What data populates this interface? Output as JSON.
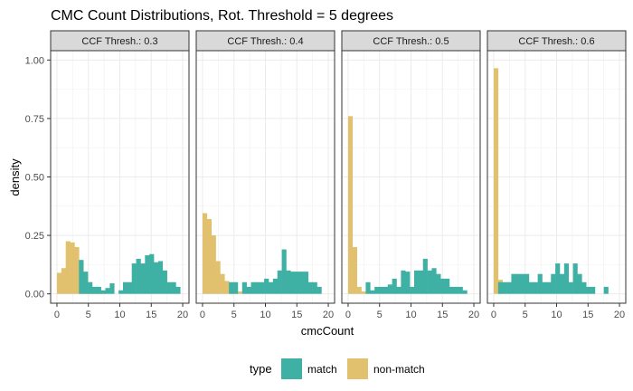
{
  "chart_data": {
    "type": "bar",
    "title": "CMC Count Distributions, Rot. Threshold = 5 degrees",
    "xlabel": "cmcCount",
    "ylabel": "density",
    "xlim": [
      -1,
      21
    ],
    "ylim": [
      -0.04,
      1.04
    ],
    "x_ticks": [
      0,
      5,
      10,
      15,
      20
    ],
    "y_ticks": [
      0.0,
      0.25,
      0.5,
      0.75,
      1.0
    ],
    "y_tick_labels": [
      "0.00",
      "0.25",
      "0.50",
      "0.75",
      "1.00"
    ],
    "bin_width": 0.7,
    "grid": true,
    "legend": {
      "title": "type",
      "position": "bottom",
      "entries": [
        {
          "name": "match",
          "color": "#3EB1A4"
        },
        {
          "name": "non-match",
          "color": "#E1C16E"
        }
      ]
    },
    "panels": [
      {
        "label": "CCF Thresh.: 0.3",
        "series": [
          {
            "name": "non-match",
            "color": "#E1C16E",
            "x": [
              0,
              0.7,
              1.4,
              2.1,
              2.8,
              3.5,
              4.2,
              4.9,
              5.6,
              6.3,
              7.0
            ],
            "values": [
              0.09,
              0.11,
              0.225,
              0.22,
              0.2,
              0.135,
              0.08,
              0.05,
              0.02,
              0.01,
              0.005
            ]
          },
          {
            "name": "match",
            "color": "#3EB1A4",
            "x": [
              3.5,
              4.2,
              4.9,
              5.6,
              6.3,
              7.0,
              7.7,
              8.4,
              9.1,
              9.8,
              10.5,
              11.2,
              11.9,
              12.6,
              13.3,
              14.0,
              14.7,
              15.4,
              16.1,
              16.8,
              17.5,
              18.2,
              18.9
            ],
            "values": [
              0.145,
              0.095,
              0.05,
              0.03,
              0.03,
              0.015,
              0.025,
              0.045,
              0.0,
              0.015,
              0.05,
              0.05,
              0.13,
              0.15,
              0.13,
              0.165,
              0.17,
              0.135,
              0.14,
              0.1,
              0.05,
              0.05,
              0.03
            ]
          }
        ]
      },
      {
        "label": "CCF Thresh.: 0.4",
        "series": [
          {
            "name": "non-match",
            "color": "#E1C16E",
            "x": [
              0,
              0.7,
              1.4,
              2.1,
              2.8,
              3.5,
              4.2,
              4.9,
              5.6
            ],
            "values": [
              0.345,
              0.32,
              0.25,
              0.14,
              0.085,
              0.055,
              0.03,
              0.02,
              0.01
            ]
          },
          {
            "name": "match",
            "color": "#3EB1A4",
            "x": [
              4.2,
              4.9,
              5.6,
              6.3,
              7.0,
              7.7,
              8.4,
              9.1,
              9.8,
              10.5,
              11.2,
              11.9,
              12.6,
              13.3,
              14.0,
              14.7,
              15.4,
              16.1,
              16.8,
              17.5,
              18.2,
              18.9
            ],
            "values": [
              0.05,
              0.05,
              0.0,
              0.05,
              0.03,
              0.05,
              0.05,
              0.05,
              0.065,
              0.05,
              0.065,
              0.1,
              0.19,
              0.1,
              0.095,
              0.095,
              0.095,
              0.095,
              0.05,
              0.05,
              0.03,
              0.0
            ]
          }
        ]
      },
      {
        "label": "CCF Thresh.: 0.5",
        "series": [
          {
            "name": "non-match",
            "color": "#E1C16E",
            "x": [
              0,
              0.7,
              1.4,
              2.1
            ],
            "values": [
              0.76,
              0.2,
              0.03,
              0.01
            ]
          },
          {
            "name": "match",
            "color": "#3EB1A4",
            "x": [
              2.1,
              2.8,
              3.5,
              4.2,
              4.9,
              5.6,
              6.3,
              7.0,
              7.7,
              8.4,
              9.1,
              9.8,
              10.5,
              11.2,
              11.9,
              12.6,
              13.3,
              14.0,
              14.7,
              15.4,
              16.1,
              16.8,
              17.5,
              18.2,
              18.9
            ],
            "values": [
              0.0,
              0.05,
              0.015,
              0.03,
              0.03,
              0.03,
              0.04,
              0.065,
              0.03,
              0.1,
              0.095,
              0.03,
              0.1,
              0.1,
              0.15,
              0.1,
              0.11,
              0.085,
              0.065,
              0.065,
              0.03,
              0.03,
              0.03,
              0.015,
              0.0
            ]
          }
        ]
      },
      {
        "label": "CCF Thresh.: 0.6",
        "series": [
          {
            "name": "non-match",
            "color": "#E1C16E",
            "x": [
              0,
              0.7
            ],
            "values": [
              0.965,
              0.06
            ]
          },
          {
            "name": "match",
            "color": "#3EB1A4",
            "x": [
              0.7,
              1.4,
              2.1,
              2.8,
              3.5,
              4.2,
              4.9,
              5.6,
              6.3,
              7.0,
              7.7,
              8.4,
              9.1,
              9.8,
              10.5,
              11.2,
              11.9,
              12.6,
              13.3,
              14.0,
              14.7,
              15.4,
              16.1,
              17.5
            ],
            "values": [
              0.05,
              0.05,
              0.05,
              0.085,
              0.085,
              0.085,
              0.085,
              0.05,
              0.05,
              0.085,
              0.05,
              0.05,
              0.085,
              0.13,
              0.085,
              0.13,
              0.05,
              0.13,
              0.085,
              0.05,
              0.03,
              0.03,
              0.0,
              0.03
            ]
          }
        ]
      }
    ]
  }
}
